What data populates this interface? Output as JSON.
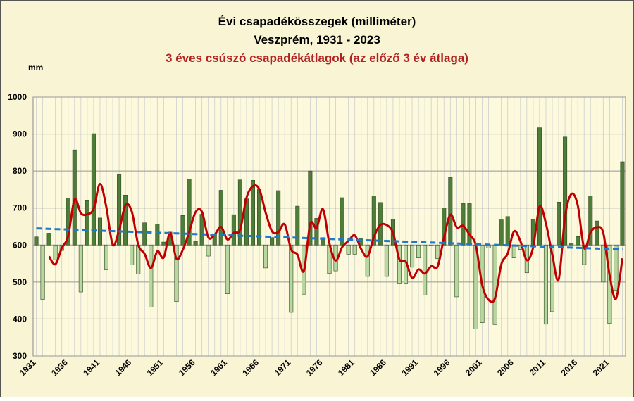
{
  "chart_data": {
    "type": "bar",
    "title": "Évi csapadékösszegek (milliméter)",
    "subtitle": "Veszprém, 1931 - 2023",
    "subtitle2": "3 éves csúszó csapadékátlagok (az előző 3 év átlaga)",
    "y_label": "mm",
    "ylim": [
      300,
      1000
    ],
    "yticks": [
      300,
      400,
      500,
      600,
      700,
      800,
      900,
      1000
    ],
    "grid": true,
    "baseline": 600,
    "color_above": "#4e7d3a",
    "color_below": "#b8d7a0",
    "categories": [
      "1931",
      null,
      null,
      null,
      null,
      "1936",
      null,
      null,
      null,
      null,
      "1941",
      null,
      null,
      null,
      null,
      "1946",
      null,
      null,
      null,
      null,
      "1951",
      null,
      null,
      null,
      null,
      "1956",
      null,
      null,
      null,
      null,
      "1961",
      null,
      null,
      null,
      null,
      "1966",
      null,
      null,
      null,
      null,
      "1971",
      null,
      null,
      null,
      null,
      "1976",
      null,
      null,
      null,
      null,
      "1981",
      null,
      null,
      null,
      null,
      "1986",
      null,
      null,
      null,
      null,
      "1991",
      null,
      null,
      null,
      null,
      "1996",
      null,
      null,
      null,
      null,
      "2001",
      null,
      null,
      null,
      null,
      "2006",
      null,
      null,
      null,
      null,
      "2011",
      null,
      null,
      null,
      null,
      "2016",
      null,
      null,
      null,
      null,
      "2021",
      null,
      null
    ],
    "values": [
      622,
      453,
      632,
      560,
      585,
      727,
      857,
      473,
      720,
      901,
      673,
      533,
      598,
      790,
      735,
      546,
      522,
      660,
      432,
      657,
      608,
      635,
      447,
      680,
      778,
      610,
      683,
      570,
      630,
      748,
      468,
      682,
      776,
      725,
      775,
      752,
      538,
      620,
      747,
      600,
      418,
      705,
      467,
      800,
      672,
      620,
      523,
      530,
      728,
      575,
      575,
      618,
      515,
      733,
      715,
      515,
      670,
      497,
      497,
      540,
      565,
      465,
      598,
      563,
      700,
      783,
      460,
      712,
      712,
      373,
      390,
      592,
      385,
      668,
      677,
      565,
      588,
      525,
      670,
      917,
      386,
      420,
      716,
      892,
      605,
      623,
      547,
      733,
      665,
      500,
      388,
      478,
      825
    ],
    "moving_average": {
      "color": "#c00000",
      "values": [
        null,
        null,
        569,
        548,
        592,
        624,
        723,
        686,
        683,
        698,
        765,
        702,
        601,
        640,
        708,
        690,
        601,
        576,
        538,
        583,
        566,
        633,
        563,
        587,
        635,
        689,
        690,
        621,
        628,
        649,
        615,
        633,
        642,
        728,
        759,
        751,
        688,
        637,
        635,
        656,
        588,
        574,
        530,
        657,
        646,
        697,
        605,
        558,
        594,
        611,
        626,
        589,
        569,
        622,
        654,
        654,
        633,
        561,
        555,
        511,
        534,
        523,
        543,
        542,
        620,
        682,
        648,
        652,
        628,
        599,
        492,
        452,
        456,
        548,
        577,
        637,
        610,
        559,
        594,
        704,
        658,
        574,
        507,
        676,
        738,
        707,
        592,
        634,
        648,
        633,
        518,
        455,
        564
      ]
    },
    "trend": {
      "color": "#1f78c8",
      "values": [
        645,
        588
      ]
    }
  }
}
